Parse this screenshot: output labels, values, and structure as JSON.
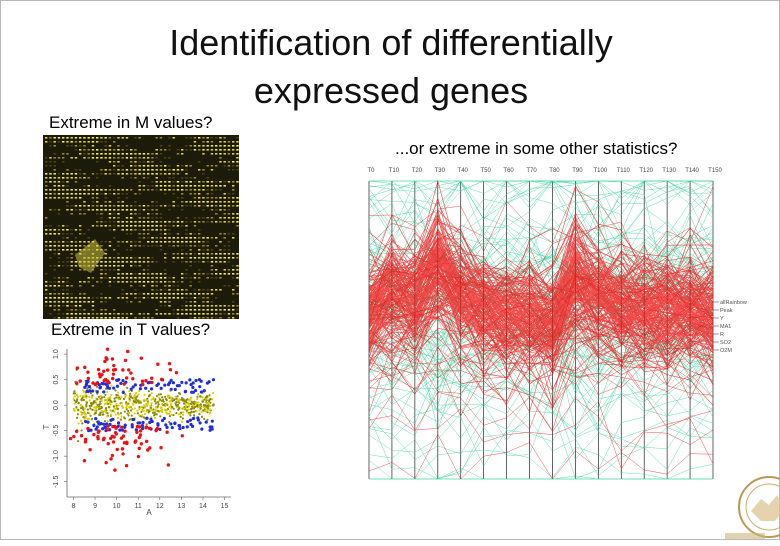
{
  "slide": {
    "title_line1": "Identification of differentially",
    "title_line2": "expressed genes",
    "caption_m": "Extreme in M values?",
    "caption_t": "Extreme in T values?",
    "caption_other": "...or extreme in some other statistics?"
  },
  "colors": {
    "red": "#ee1010",
    "green": "#2fd09a",
    "blue": "#1f2ee0",
    "yellow": "#d8d000",
    "olive": "#8a8a10",
    "spot": "#e0d040"
  },
  "chart_data": [
    {
      "type": "scatter",
      "xlabel": "A",
      "ylabel": "T",
      "x_ticks": [
        "8",
        "9",
        "10",
        "11",
        "12",
        "13",
        "14",
        "15"
      ],
      "y_ticks": [
        "1.0",
        "0.5",
        "0.0",
        "-0.5",
        "-1.0",
        "-1.5"
      ],
      "xlim": [
        7.7,
        15.3
      ],
      "ylim": [
        -1.8,
        1.1
      ]
    },
    {
      "type": "line",
      "subtype": "parallel-coordinates",
      "categories": [
        "T0",
        "T10",
        "T20",
        "T30",
        "T40",
        "T50",
        "T60",
        "T70",
        "T80",
        "T90",
        "T100",
        "T110",
        "T120",
        "T130",
        "T140",
        "T150"
      ],
      "legend": [
        "allRainbow",
        "Peak",
        "Y",
        "MA1",
        "R",
        "SO2",
        "O2M"
      ]
    }
  ]
}
